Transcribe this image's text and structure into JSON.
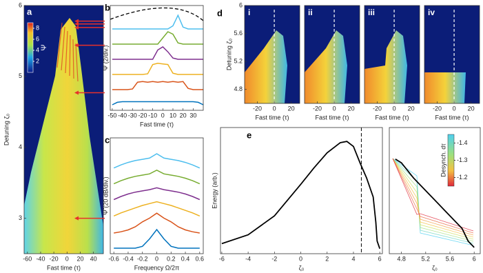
{
  "chart_data": [
    {
      "type": "heatmap",
      "letter": "a",
      "xlabel": "Fast time (τ)",
      "ylabel": "Detuning ζ₀",
      "xlim": [
        -65,
        55
      ],
      "ylim": [
        2.5,
        6
      ],
      "xticks": [
        -60,
        -40,
        -20,
        0,
        20,
        40
      ],
      "yticks": [
        3,
        4,
        5,
        6
      ],
      "colorbar": {
        "label": "Ψ",
        "lim": [
          0,
          9
        ],
        "ticks": [
          2,
          4,
          6,
          8
        ]
      },
      "arrows": [
        5.78,
        5.74,
        5.69,
        5.44,
        4.77,
        3.0
      ],
      "arrow_color": "#e8302a"
    },
    {
      "type": "stacked-line",
      "letter": "b",
      "xlabel": "Fast time (τ)",
      "ylabel": "Ψ (2/div.)",
      "xlim": [
        -52,
        40
      ],
      "xticks": [
        -50,
        -40,
        -30,
        -20,
        -10,
        0,
        10,
        20,
        30
      ],
      "x": [
        -50,
        -45,
        -40,
        -35,
        -30,
        -25,
        -20,
        -15,
        -10,
        -5,
        0,
        5,
        10,
        15,
        20,
        25,
        30,
        35,
        40
      ],
      "series": [
        {
          "color": "#0072bd",
          "values": [
            0,
            0.4,
            0.5,
            0.5,
            0.5,
            0.5,
            0.5,
            0.5,
            0.5,
            0.5,
            0.5,
            0.5,
            0.5,
            0.5,
            0.5,
            0.5,
            0.5,
            0.4,
            0
          ]
        },
        {
          "color": "#d95319",
          "values": [
            0,
            0,
            0,
            0,
            0.1,
            1.2,
            1.3,
            1.2,
            1.3,
            1.2,
            1.3,
            1.2,
            1.3,
            1.2,
            1.3,
            0.2,
            0,
            0,
            0
          ]
        },
        {
          "color": "#edb120",
          "values": [
            0,
            0,
            0,
            0,
            0,
            0,
            0,
            0.1,
            1.6,
            1.8,
            1.7,
            1.6,
            0.2,
            0,
            0,
            0,
            0,
            0,
            0
          ]
        },
        {
          "color": "#7e2f8e",
          "values": [
            0,
            0,
            0,
            0,
            0,
            0,
            0,
            0,
            0,
            1.5,
            2.0,
            1.2,
            0.2,
            0,
            0,
            0,
            0,
            0,
            0
          ]
        },
        {
          "color": "#77ac30",
          "values": [
            0,
            0,
            0,
            0,
            0,
            0,
            0,
            0,
            0,
            0,
            1.0,
            2.0,
            1.6,
            0.2,
            0,
            0,
            0,
            0,
            0
          ]
        },
        {
          "color": "#4dbeee",
          "values": [
            0,
            0,
            0,
            0,
            0,
            0,
            0,
            0,
            0,
            0,
            0,
            0,
            0.5,
            2.2,
            0.3,
            0,
            0,
            0,
            0
          ]
        }
      ]
    },
    {
      "type": "stacked-line",
      "letter": "c",
      "xlabel": "Frequency Ω/2π",
      "ylabel": "Ψ̃ (20 dB/div.)",
      "xlim": [
        -0.65,
        0.65
      ],
      "xticks": [
        -0.6,
        -0.4,
        -0.2,
        0,
        0.2,
        0.4,
        0.6
      ],
      "x": [
        -0.6,
        -0.5,
        -0.4,
        -0.3,
        -0.2,
        -0.1,
        0,
        0.1,
        0.2,
        0.3,
        0.4,
        0.5,
        0.6
      ],
      "series": [
        {
          "color": "#0072bd",
          "values": [
            0,
            0,
            0,
            0,
            0.3,
            1.5,
            3.0,
            1.5,
            0.3,
            0,
            0,
            0,
            0
          ]
        },
        {
          "color": "#d95319",
          "values": [
            0,
            0.2,
            0.5,
            1.0,
            1.8,
            2.4,
            3.2,
            2.4,
            1.8,
            1.0,
            0.5,
            0.2,
            0
          ]
        },
        {
          "color": "#edb120",
          "values": [
            0.3,
            0.8,
            1.2,
            1.6,
            2.0,
            2.3,
            2.6,
            2.3,
            2.0,
            1.6,
            1.2,
            0.8,
            0.3
          ]
        },
        {
          "color": "#7e2f8e",
          "values": [
            0.5,
            1.0,
            1.4,
            1.7,
            1.9,
            2.1,
            2.4,
            2.1,
            1.9,
            1.7,
            1.4,
            1.0,
            0.5
          ]
        },
        {
          "color": "#77ac30",
          "values": [
            0.6,
            1.1,
            1.5,
            1.8,
            2.0,
            2.2,
            2.8,
            2.2,
            2.0,
            1.8,
            1.5,
            1.1,
            0.6
          ]
        },
        {
          "color": "#4dbeee",
          "values": [
            0.7,
            1.2,
            1.6,
            1.9,
            2.1,
            2.3,
            3.0,
            2.3,
            2.1,
            1.9,
            1.6,
            1.2,
            0.7
          ]
        }
      ]
    },
    {
      "type": "heatmap-grid",
      "letter": "d",
      "xlabel": "Fast time (τ)",
      "ylabel": "Detuning ζ₀",
      "xlim": [
        -35,
        30
      ],
      "ylim": [
        4.6,
        6
      ],
      "xticks": [
        -20,
        0,
        20
      ],
      "yticks": [
        4.8,
        5.2,
        5.6,
        6
      ],
      "panels": [
        "i",
        "ii",
        "iii",
        "iv"
      ],
      "marker_x": 0
    },
    {
      "type": "line",
      "letter": "e",
      "xlabel": "ζ₀",
      "ylabel": "Energy (arb.)",
      "xlim": [
        -6.1,
        6.2
      ],
      "ylim": [
        0,
        1
      ],
      "xticks": [
        -6,
        -4,
        -2,
        0,
        2,
        4,
        6
      ],
      "color": "#000000",
      "marker_x": 4.6,
      "x": [
        -6,
        -4,
        -2,
        0,
        1,
        2,
        3,
        3.5,
        4,
        4.5,
        5,
        5.5,
        5.7,
        5.8,
        6
      ],
      "values": [
        0.08,
        0.15,
        0.3,
        0.55,
        0.68,
        0.8,
        0.88,
        0.89,
        0.85,
        0.72,
        0.6,
        0.45,
        0.25,
        0.1,
        0.04
      ]
    },
    {
      "type": "line",
      "xlabel": "ζ₀",
      "xlim": [
        4.6,
        6.1
      ],
      "ylim": [
        0,
        1
      ],
      "xticks": [
        4.8,
        5.2,
        5.6,
        6
      ],
      "color": "#000000",
      "x": [
        4.7,
        4.8,
        4.9,
        5.0,
        5.1,
        5.2,
        5.3,
        5.4,
        5.5,
        5.6,
        5.7,
        5.8,
        5.9,
        6.0
      ],
      "values": [
        0.75,
        0.72,
        0.66,
        0.6,
        0.55,
        0.5,
        0.45,
        0.4,
        0.35,
        0.3,
        0.25,
        0.2,
        0.1,
        0.05
      ],
      "colorbar": {
        "label": "Desynch. dτ",
        "lim": [
          -1.45,
          -1.15
        ],
        "ticks": [
          -1.4,
          -1.3,
          -1.2
        ]
      }
    }
  ]
}
